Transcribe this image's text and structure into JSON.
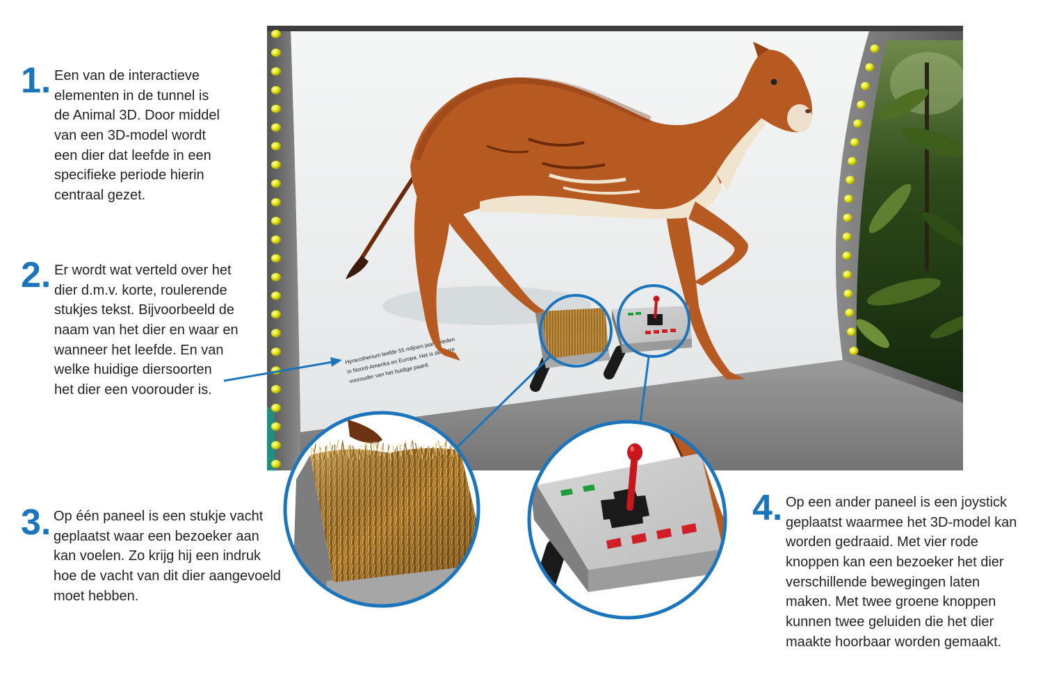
{
  "annotations": [
    {
      "number": "1.",
      "lines": [
        "Een van de interactieve",
        "elementen in de tunnel is",
        "de Animal 3D. Door middel",
        "van een 3D-model wordt",
        "een dier dat leefde in een",
        "specifieke periode hierin",
        "centraal gezet."
      ]
    },
    {
      "number": "2.",
      "lines": [
        "Er wordt wat verteld over het",
        "dier d.m.v. korte, roulerende",
        "stukjes tekst. Bijvoorbeeld de",
        "naam van het dier en waar en",
        "wanneer het leefde. En van",
        "welke huidige diersoorten",
        "het dier een voorouder is."
      ]
    },
    {
      "number": "3.",
      "lines": [
        "Op één paneel is een stukje vacht",
        "geplaatst waar een bezoeker aan",
        "kan voelen. Zo krijg hij een indruk",
        "hoe de vacht van dit dier aangevoeld",
        "moet hebben."
      ]
    },
    {
      "number": "4.",
      "lines": [
        "Op een ander paneel is een joystick",
        "geplaatst waarmee het 3D-model kan",
        "worden gedraaid. Met vier rode",
        "knoppen kan een bezoeker het dier",
        "verschillende bewegingen laten",
        "maken. Met twee groene knoppen",
        "kunnen twee geluiden die het dier",
        "maakte hoorbaar worden gemaakt."
      ]
    }
  ],
  "screen_caption": [
    "Hyracotherium leefde 55 miljoen jaar geleden",
    "in Noord-Amerika en Europa. Het is de verre",
    "voorouder van het huidige paard."
  ],
  "colors": {
    "accent": "#1b75bc",
    "text": "#231f20",
    "animal": "#b65a22",
    "animal_dark": "#6b2a0a",
    "belly": "#f1e4cf",
    "button_red": "#d01f26",
    "button_green": "#1f9d3a",
    "joystick_red": "#c8161d",
    "panel_grey": "#c9c9c9",
    "stand_black": "#1a1a1a"
  },
  "icons": [
    "joystick-icon",
    "fur-panel-icon",
    "arrow-icon",
    "magnifier-circle-icon"
  ]
}
